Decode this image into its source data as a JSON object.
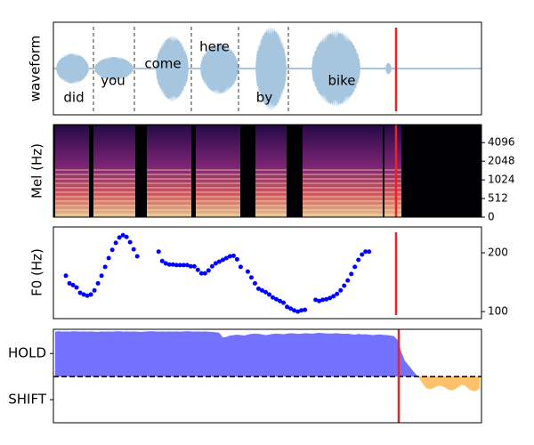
{
  "chart_data": [
    {
      "type": "waveform",
      "ylabel": "waveform",
      "words": [
        "did",
        "you",
        "come",
        "here",
        "by",
        "bike"
      ]
    },
    {
      "type": "spectrogram",
      "ylabel": "Mel (Hz)",
      "ylim": [
        0,
        8000
      ],
      "yscale": "symlog",
      "linthresh": 512,
      "yticks": [
        0,
        512,
        1024,
        2048,
        4096
      ]
    },
    {
      "type": "scatter",
      "ylabel": "F0 (Hz)",
      "ylim": [
        88,
        244
      ],
      "yticks": [
        100,
        200
      ],
      "color": "#0000ff",
      "values": [
        null,
        null,
        null,
        161,
        148,
        145,
        141,
        132,
        129,
        127,
        129,
        136,
        148,
        161,
        176,
        191,
        205,
        217,
        226,
        230,
        227,
        218,
        206,
        194,
        null,
        null,
        null,
        null,
        null,
        202,
        186,
        182,
        180,
        180,
        179,
        179,
        179,
        179,
        177,
        177,
        171,
        165,
        165,
        170,
        177,
        182,
        185,
        188,
        191,
        194,
        195,
        189,
        176,
        null,
        168,
        158,
        148,
        139,
        136,
        133,
        129,
        124,
        121,
        118,
        115,
        108,
        105,
        102,
        100,
        102,
        103,
        null,
        null,
        120,
        118,
        120,
        121,
        123,
        126,
        130,
        136,
        144,
        153,
        164,
        176,
        188,
        197,
        202,
        202,
        null,
        null,
        null,
        null,
        null,
        null,
        null,
        null,
        null,
        null,
        null,
        null,
        null,
        null,
        null,
        null,
        null,
        null,
        null,
        null,
        null,
        null,
        null,
        null,
        null,
        null,
        null,
        null,
        null,
        null,
        null
      ]
    },
    {
      "type": "area",
      "ylim": [
        -2,
        2.05
      ],
      "yticks": [
        {
          "value": 1,
          "label": "HOLD"
        },
        {
          "value": -1,
          "label": "SHIFT"
        }
      ],
      "hline": 0,
      "colors": [
        "#6b6bff",
        "#ffbf60"
      ],
      "values": [
        1.95,
        1.97,
        1.95,
        1.96,
        1.95,
        1.97,
        1.96,
        1.95,
        1.96,
        1.95,
        1.96,
        1.95,
        1.94,
        1.96,
        1.95,
        1.96,
        1.95,
        1.96,
        1.97,
        1.95,
        1.96,
        1.95,
        1.96,
        1.95,
        1.94,
        1.95,
        1.96,
        1.97,
        1.96,
        1.95,
        1.96,
        1.95,
        1.96,
        1.95,
        1.96,
        1.95,
        1.96,
        1.97,
        1.96,
        1.95,
        1.96,
        1.95,
        1.96,
        1.95,
        1.94,
        1.92,
        1.9,
        1.7,
        1.72,
        1.78,
        1.8,
        1.82,
        1.8,
        1.78,
        1.82,
        1.85,
        1.86,
        1.85,
        1.83,
        1.8,
        1.82,
        1.85,
        1.86,
        1.85,
        1.84,
        1.86,
        1.88,
        1.87,
        1.85,
        1.86,
        1.88,
        1.87,
        1.86,
        1.88,
        1.9,
        1.88,
        1.87,
        1.86,
        1.87,
        1.88,
        1.86,
        1.85,
        1.86,
        1.84,
        1.82,
        1.85,
        1.83,
        1.84,
        1.82,
        1.8,
        1.82,
        1.83,
        1.81,
        1.8,
        1.78,
        1.75,
        1.58,
        1.08,
        0.69,
        0.5,
        0.31,
        0.12,
        -0.04,
        -0.3,
        -0.5,
        -0.55,
        -0.5,
        -0.42,
        -0.4,
        -0.45,
        -0.55,
        -0.6,
        -0.55,
        -0.45,
        -0.35,
        -0.4,
        -0.55,
        -0.62,
        -0.62,
        -0.5
      ]
    }
  ]
}
